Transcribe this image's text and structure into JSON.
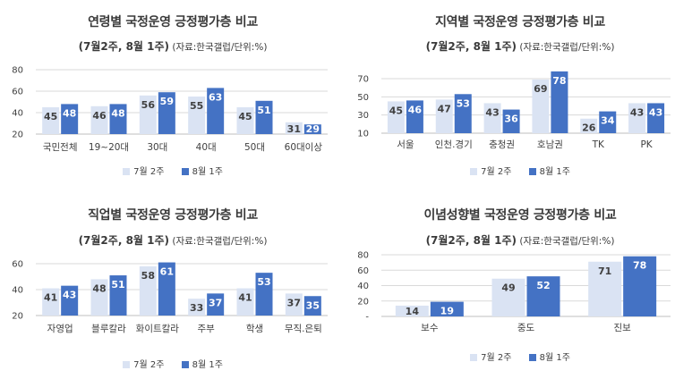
{
  "colors": {
    "series1": "#dae3f3",
    "series2": "#4472c4",
    "grid": "#d9d9d9",
    "axis": "#bfbfbf",
    "text": "#404040"
  },
  "chart_data": [
    {
      "type": "bar",
      "title": "연령별 국정운영 긍정평가층 비교",
      "subtitle_bold": "(7월2주, 8월 1주)",
      "subtitle_src": " (자료:한국갤럽/단위:%)",
      "categories": [
        "국민전체",
        "19~20대",
        "30대",
        "40대",
        "50대",
        "60대이상"
      ],
      "series": [
        {
          "name": "7월 2주",
          "values": [
            45,
            46,
            56,
            55,
            45,
            31
          ]
        },
        {
          "name": "8월 1주",
          "values": [
            48,
            48,
            59,
            63,
            51,
            29
          ]
        }
      ],
      "ylim": [
        20,
        80
      ],
      "yticks": [
        "20",
        "40",
        "60",
        "80"
      ],
      "ytick_values": [
        20,
        40,
        60,
        80
      ],
      "grid": true,
      "legend": "bottom"
    },
    {
      "type": "bar",
      "title": "지역별 국정운영 긍정평가층 비교",
      "subtitle_bold": "(7월2주, 8월 1주)",
      "subtitle_src": " (자료:한국갤럽/단위:%)",
      "categories": [
        "서울",
        "인천.경기",
        "충청권",
        "호남권",
        "TK",
        "PK"
      ],
      "series": [
        {
          "name": "7월 2주",
          "values": [
            45,
            47,
            43,
            69,
            26,
            43
          ]
        },
        {
          "name": "8월 1주",
          "values": [
            46,
            53,
            36,
            78,
            34,
            43
          ]
        }
      ],
      "ylim": [
        10,
        70
      ],
      "yticks": [
        "10",
        "30",
        "50",
        "70"
      ],
      "ytick_values": [
        10,
        30,
        50,
        70
      ],
      "grid": true,
      "legend": "bottom"
    },
    {
      "type": "bar",
      "title": "직업별 국정운영 긍정평가층 비교",
      "subtitle_bold": "(7월2주, 8월 1주)",
      "subtitle_src": " (자료:한국갤럽/단위:%)",
      "categories": [
        "자영업",
        "블루칼라",
        "화이트칼라",
        "주부",
        "학생",
        "무직.은퇴"
      ],
      "series": [
        {
          "name": "7월 2주",
          "values": [
            41,
            48,
            58,
            33,
            41,
            37
          ]
        },
        {
          "name": "8월 1주",
          "values": [
            43,
            51,
            61,
            37,
            53,
            35
          ]
        }
      ],
      "ylim": [
        20,
        60
      ],
      "yticks": [
        "20",
        "40",
        "60"
      ],
      "ytick_values": [
        20,
        40,
        60
      ],
      "grid": true,
      "legend": "bottom"
    },
    {
      "type": "bar",
      "title": "이념성향별 국정운영 긍정평가층 비교",
      "subtitle_bold": "(7월2주, 8월 1주)",
      "subtitle_src": " (자료:한국갤럽/단위:%)",
      "categories": [
        "보수",
        "중도",
        "진보"
      ],
      "series": [
        {
          "name": "7월 2주",
          "values": [
            14,
            49,
            71
          ]
        },
        {
          "name": "8월 1주",
          "values": [
            19,
            52,
            78
          ]
        }
      ],
      "ylim": [
        0,
        80
      ],
      "yticks": [
        "-",
        "20",
        "40",
        "60",
        "80"
      ],
      "ytick_values": [
        0,
        20,
        40,
        60,
        80
      ],
      "grid": true,
      "legend": "bottom"
    }
  ]
}
